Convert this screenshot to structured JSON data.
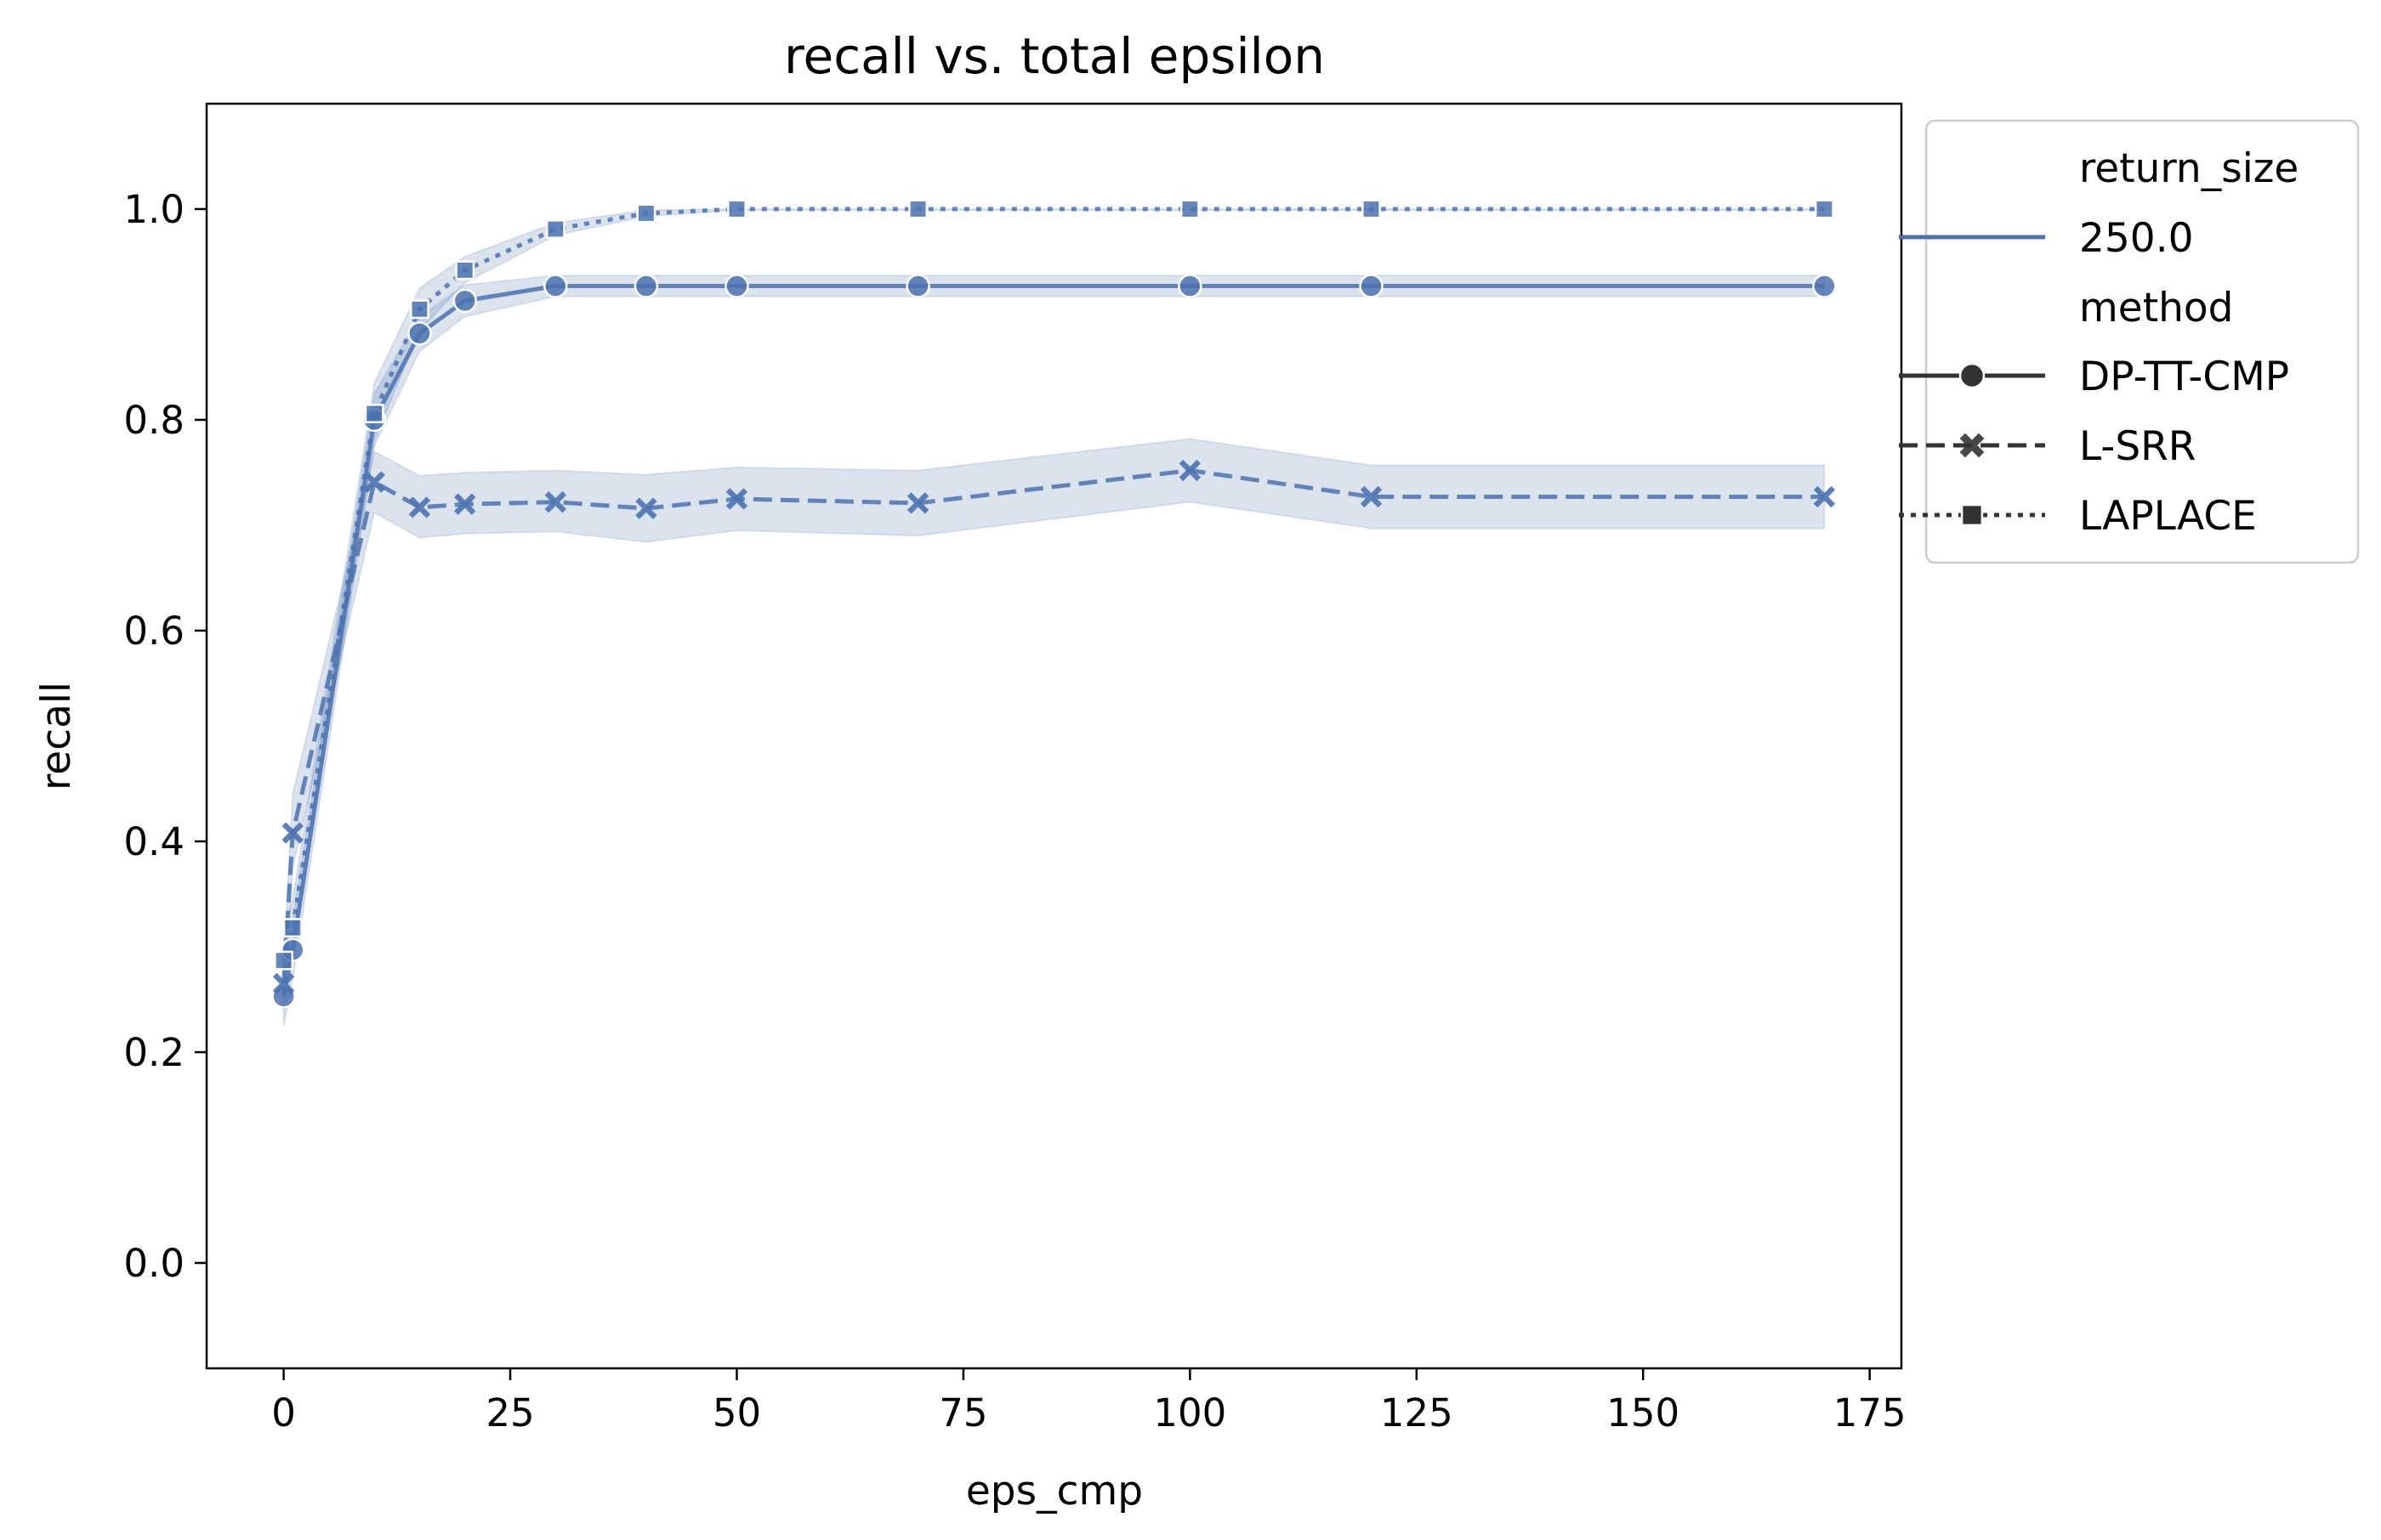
{
  "chart_data": {
    "type": "line",
    "title": "recall vs. total epsilon",
    "xlabel": "eps_cmp",
    "ylabel": "recall",
    "xlim": [
      -8.5,
      178.5
    ],
    "ylim": [
      -0.1,
      1.1
    ],
    "xticks": [
      0,
      25,
      50,
      75,
      100,
      125,
      150,
      175
    ],
    "yticks": [
      0.0,
      0.2,
      0.4,
      0.6,
      0.8,
      1.0
    ],
    "xtick_labels": [
      "0",
      "25",
      "50",
      "75",
      "100",
      "125",
      "150",
      "175"
    ],
    "ytick_labels": [
      "0.0",
      "0.2",
      "0.4",
      "0.6",
      "0.8",
      "1.0"
    ],
    "grid": false,
    "legend_position": "outside-right-top",
    "color": "#4c72b0",
    "legend": {
      "hue_title": "return_size",
      "hue_entries": [
        "250.0"
      ],
      "style_title": "method"
    },
    "series": [
      {
        "name": "DP-TT-CMP",
        "marker": "circle",
        "linestyle": "solid",
        "x": [
          0,
          1,
          10,
          15,
          20,
          30,
          40,
          50,
          70,
          100,
          120,
          170
        ],
        "y": [
          0.253,
          0.297,
          0.8,
          0.882,
          0.913,
          0.927,
          0.927,
          0.927,
          0.927,
          0.927,
          0.927,
          0.927
        ],
        "ci_low": [
          0.225,
          0.27,
          0.775,
          0.865,
          0.898,
          0.917,
          0.917,
          0.917,
          0.917,
          0.917,
          0.917,
          0.917
        ],
        "ci_high": [
          0.28,
          0.325,
          0.825,
          0.898,
          0.928,
          0.937,
          0.937,
          0.937,
          0.937,
          0.937,
          0.937,
          0.937
        ]
      },
      {
        "name": "L-SRR",
        "marker": "x",
        "linestyle": "dashed",
        "x": [
          0,
          1,
          10,
          15,
          20,
          30,
          40,
          50,
          70,
          100,
          120,
          170
        ],
        "y": [
          0.265,
          0.408,
          0.741,
          0.717,
          0.72,
          0.722,
          0.716,
          0.725,
          0.721,
          0.752,
          0.727,
          0.727
        ],
        "ci_low": [
          0.24,
          0.375,
          0.712,
          0.688,
          0.692,
          0.694,
          0.684,
          0.695,
          0.69,
          0.722,
          0.697,
          0.697
        ],
        "ci_high": [
          0.29,
          0.445,
          0.77,
          0.747,
          0.75,
          0.752,
          0.748,
          0.755,
          0.752,
          0.782,
          0.757,
          0.757
        ]
      },
      {
        "name": "LAPLACE",
        "marker": "square",
        "linestyle": "dotted",
        "x": [
          0,
          1,
          10,
          15,
          20,
          30,
          40,
          50,
          70,
          100,
          120,
          170
        ],
        "y": [
          0.287,
          0.318,
          0.806,
          0.905,
          0.942,
          0.981,
          0.996,
          1.0,
          1.0,
          1.0,
          1.0,
          1.0
        ],
        "ci_low": [
          0.262,
          0.292,
          0.78,
          0.885,
          0.93,
          0.975,
          0.993,
          0.999,
          0.999,
          0.999,
          0.999,
          0.999
        ],
        "ci_high": [
          0.312,
          0.345,
          0.835,
          0.925,
          0.955,
          0.987,
          0.999,
          1.0,
          1.0,
          1.0,
          1.0,
          1.0
        ]
      }
    ]
  }
}
